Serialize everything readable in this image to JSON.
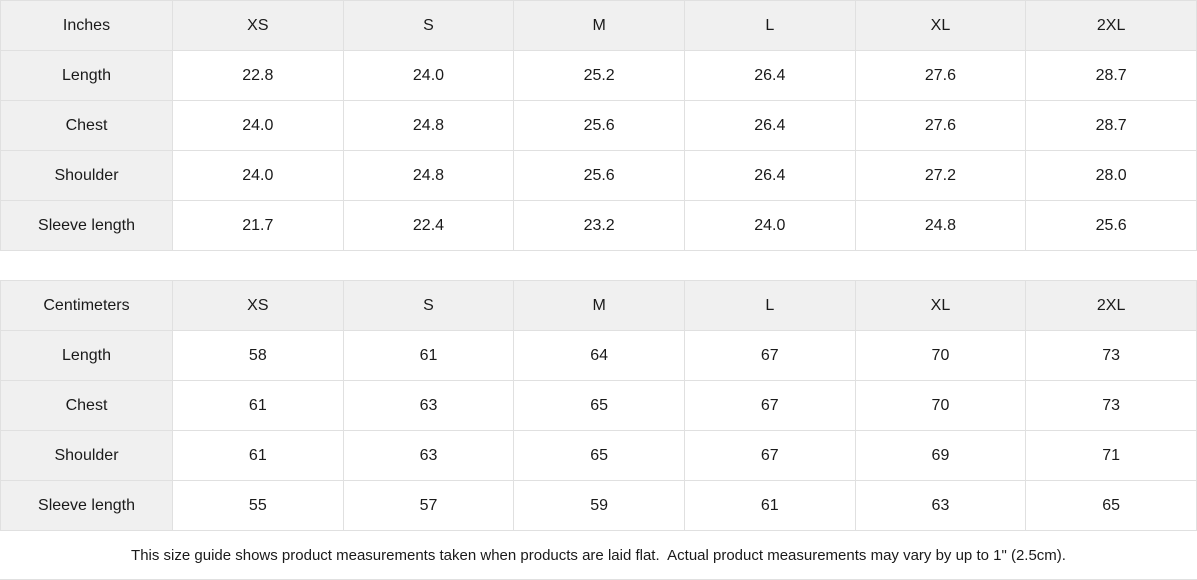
{
  "colors": {
    "header_bg": "#f0f0f0",
    "cell_bg": "#ffffff",
    "border": "#e0e0e0",
    "text": "#1a1a1a"
  },
  "size_columns": [
    "XS",
    "S",
    "M",
    "L",
    "XL",
    "2XL"
  ],
  "tables": [
    {
      "unit_label": "Inches",
      "rows": [
        {
          "label": "Length",
          "values": [
            "22.8",
            "24.0",
            "25.2",
            "26.4",
            "27.6",
            "28.7"
          ]
        },
        {
          "label": "Chest",
          "values": [
            "24.0",
            "24.8",
            "25.6",
            "26.4",
            "27.6",
            "28.7"
          ]
        },
        {
          "label": "Shoulder",
          "values": [
            "24.0",
            "24.8",
            "25.6",
            "26.4",
            "27.2",
            "28.0"
          ]
        },
        {
          "label": "Sleeve length",
          "values": [
            "21.7",
            "22.4",
            "23.2",
            "24.0",
            "24.8",
            "25.6"
          ]
        }
      ]
    },
    {
      "unit_label": "Centimeters",
      "rows": [
        {
          "label": "Length",
          "values": [
            "58",
            "61",
            "64",
            "67",
            "70",
            "73"
          ]
        },
        {
          "label": "Chest",
          "values": [
            "61",
            "63",
            "65",
            "67",
            "70",
            "73"
          ]
        },
        {
          "label": "Shoulder",
          "values": [
            "61",
            "63",
            "65",
            "67",
            "69",
            "71"
          ]
        },
        {
          "label": "Sleeve length",
          "values": [
            "55",
            "57",
            "59",
            "61",
            "63",
            "65"
          ]
        }
      ]
    }
  ],
  "footer": {
    "note": "This size guide shows product measurements taken when products are laid flat.  Actual product measurements may vary by up to 1\" (2.5cm)."
  }
}
